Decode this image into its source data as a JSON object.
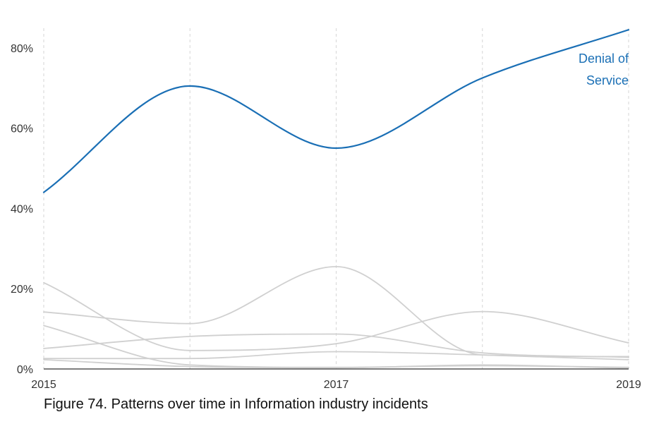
{
  "caption": "Figure 74. Patterns over time in Information industry incidents",
  "chart_data": {
    "type": "line",
    "x": [
      2015,
      2016,
      2017,
      2018,
      2019
    ],
    "x_tick_labels": [
      "2015",
      "2017",
      "2019"
    ],
    "y_tick_labels": [
      "0%",
      "20%",
      "40%",
      "60%",
      "80%"
    ],
    "ylim": [
      0,
      86
    ],
    "grid": "vertical dashed lines at each year",
    "series": [
      {
        "name": "Denial of Service",
        "label_lines": [
          "Denial of",
          "Service"
        ],
        "color": "#1a6fb5",
        "highlight": true,
        "values": [
          44,
          70.5,
          55,
          72.5,
          84.5
        ]
      },
      {
        "color": "#d0d0d0",
        "values": [
          21.5,
          4.6,
          6.3,
          14.3,
          6.5
        ]
      },
      {
        "color": "#d0d0d0",
        "values": [
          14.2,
          11.3,
          25.5,
          3.5,
          3.1
        ]
      },
      {
        "color": "#d0d0d0",
        "values": [
          10.8,
          1.0,
          0.4,
          0.8,
          0.4
        ]
      },
      {
        "color": "#d0d0d0",
        "values": [
          5.1,
          8.1,
          8.7,
          4.0,
          2.9
        ]
      },
      {
        "color": "#d0d0d0",
        "values": [
          2.6,
          2.6,
          4.3,
          3.5,
          2.3
        ]
      },
      {
        "color": "#d0d0d0",
        "values": [
          2.3,
          0.6,
          0.3,
          1.0,
          0.2
        ]
      }
    ],
    "baseline_color": "#333333",
    "grid_color": "#d6d6d6"
  }
}
